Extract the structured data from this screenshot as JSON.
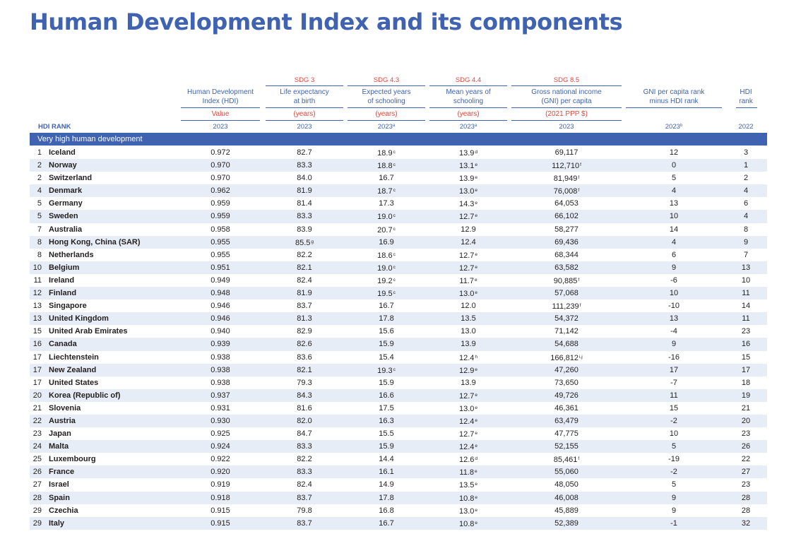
{
  "title": "Human Development Index and its components",
  "header": {
    "sdg": [
      "SDG 3",
      "SDG 4.3",
      "SDG 4.4",
      "SDG 8.5"
    ],
    "columns": [
      {
        "label_lines": [
          "Human Development",
          "Index (HDI)"
        ],
        "unit": "Value",
        "year": "2023",
        "year_note": ""
      },
      {
        "label_lines": [
          "Life expectancy",
          "at birth"
        ],
        "unit": "(years)",
        "year": "2023",
        "year_note": ""
      },
      {
        "label_lines": [
          "Expected years",
          "of schooling"
        ],
        "unit": "(years)",
        "year": "2023",
        "year_note": "a"
      },
      {
        "label_lines": [
          "Mean years of",
          "schooling"
        ],
        "unit": "(years)",
        "year": "2023",
        "year_note": "a"
      },
      {
        "label_lines": [
          "Gross national income",
          "(GNI) per capita"
        ],
        "unit": "(2021 PPP $)",
        "year": "2023",
        "year_note": ""
      },
      {
        "label_lines": [
          "GNI per capita rank",
          "minus HDI rank"
        ],
        "unit": "",
        "year": "2023",
        "year_note": "b"
      },
      {
        "label_lines": [
          "HDI",
          "rank"
        ],
        "unit": "",
        "year": "2022",
        "year_note": ""
      }
    ],
    "rank_label": "HDI RANK"
  },
  "group_label": "Very high human development",
  "table": {
    "rows": [
      {
        "rank": "1",
        "country": "Iceland",
        "hdi": "0.972",
        "le": "82.7",
        "le_note": "",
        "eys": "18.9",
        "eys_note": "c",
        "mys": "13.9",
        "mys_note": "d",
        "gni": "69,117",
        "gni_note": "",
        "diff": "12",
        "rank2022": "3"
      },
      {
        "rank": "2",
        "country": "Norway",
        "hdi": "0.970",
        "le": "83.3",
        "le_note": "",
        "eys": "18.8",
        "eys_note": "c",
        "mys": "13.1",
        "mys_note": "e",
        "gni": "112,710",
        "gni_note": "f",
        "diff": "0",
        "rank2022": "1"
      },
      {
        "rank": "2",
        "country": "Switzerland",
        "hdi": "0.970",
        "le": "84.0",
        "le_note": "",
        "eys": "16.7",
        "eys_note": "",
        "mys": "13.9",
        "mys_note": "e",
        "gni": "81,949",
        "gni_note": "f",
        "diff": "5",
        "rank2022": "2"
      },
      {
        "rank": "4",
        "country": "Denmark",
        "hdi": "0.962",
        "le": "81.9",
        "le_note": "",
        "eys": "18.7",
        "eys_note": "c",
        "mys": "13.0",
        "mys_note": "e",
        "gni": "76,008",
        "gni_note": "f",
        "diff": "4",
        "rank2022": "4"
      },
      {
        "rank": "5",
        "country": "Germany",
        "hdi": "0.959",
        "le": "81.4",
        "le_note": "",
        "eys": "17.3",
        "eys_note": "",
        "mys": "14.3",
        "mys_note": "e",
        "gni": "64,053",
        "gni_note": "",
        "diff": "13",
        "rank2022": "6"
      },
      {
        "rank": "5",
        "country": "Sweden",
        "hdi": "0.959",
        "le": "83.3",
        "le_note": "",
        "eys": "19.0",
        "eys_note": "c",
        "mys": "12.7",
        "mys_note": "e",
        "gni": "66,102",
        "gni_note": "",
        "diff": "10",
        "rank2022": "4"
      },
      {
        "rank": "7",
        "country": "Australia",
        "hdi": "0.958",
        "le": "83.9",
        "le_note": "",
        "eys": "20.7",
        "eys_note": "c",
        "mys": "12.9",
        "mys_note": "",
        "gni": "58,277",
        "gni_note": "",
        "diff": "14",
        "rank2022": "8"
      },
      {
        "rank": "8",
        "country": "Hong Kong, China (SAR)",
        "hdi": "0.955",
        "le": "85.5",
        "le_note": "g",
        "eys": "16.9",
        "eys_note": "",
        "mys": "12.4",
        "mys_note": "",
        "gni": "69,436",
        "gni_note": "",
        "diff": "4",
        "rank2022": "9"
      },
      {
        "rank": "8",
        "country": "Netherlands",
        "hdi": "0.955",
        "le": "82.2",
        "le_note": "",
        "eys": "18.6",
        "eys_note": "c",
        "mys": "12.7",
        "mys_note": "e",
        "gni": "68,344",
        "gni_note": "",
        "diff": "6",
        "rank2022": "7"
      },
      {
        "rank": "10",
        "country": "Belgium",
        "hdi": "0.951",
        "le": "82.1",
        "le_note": "",
        "eys": "19.0",
        "eys_note": "c",
        "mys": "12.7",
        "mys_note": "e",
        "gni": "63,582",
        "gni_note": "",
        "diff": "9",
        "rank2022": "13"
      },
      {
        "rank": "11",
        "country": "Ireland",
        "hdi": "0.949",
        "le": "82.4",
        "le_note": "",
        "eys": "19.2",
        "eys_note": "c",
        "mys": "11.7",
        "mys_note": "e",
        "gni": "90,885",
        "gni_note": "f",
        "diff": "-6",
        "rank2022": "10"
      },
      {
        "rank": "12",
        "country": "Finland",
        "hdi": "0.948",
        "le": "81.9",
        "le_note": "",
        "eys": "19.5",
        "eys_note": "c",
        "mys": "13.0",
        "mys_note": "e",
        "gni": "57,068",
        "gni_note": "",
        "diff": "10",
        "rank2022": "11"
      },
      {
        "rank": "13",
        "country": "Singapore",
        "hdi": "0.946",
        "le": "83.7",
        "le_note": "",
        "eys": "16.7",
        "eys_note": "",
        "mys": "12.0",
        "mys_note": "",
        "gni": "111,239",
        "gni_note": "f",
        "diff": "-10",
        "rank2022": "14"
      },
      {
        "rank": "13",
        "country": "United Kingdom",
        "hdi": "0.946",
        "le": "81.3",
        "le_note": "",
        "eys": "17.8",
        "eys_note": "",
        "mys": "13.5",
        "mys_note": "",
        "gni": "54,372",
        "gni_note": "",
        "diff": "13",
        "rank2022": "11"
      },
      {
        "rank": "15",
        "country": "United Arab Emirates",
        "hdi": "0.940",
        "le": "82.9",
        "le_note": "",
        "eys": "15.6",
        "eys_note": "",
        "mys": "13.0",
        "mys_note": "",
        "gni": "71,142",
        "gni_note": "",
        "diff": "-4",
        "rank2022": "23"
      },
      {
        "rank": "16",
        "country": "Canada",
        "hdi": "0.939",
        "le": "82.6",
        "le_note": "",
        "eys": "15.9",
        "eys_note": "",
        "mys": "13.9",
        "mys_note": "",
        "gni": "54,688",
        "gni_note": "",
        "diff": "9",
        "rank2022": "16"
      },
      {
        "rank": "17",
        "country": "Liechtenstein",
        "hdi": "0.938",
        "le": "83.6",
        "le_note": "",
        "eys": "15.4",
        "eys_note": "",
        "mys": "12.4",
        "mys_note": "h",
        "gni": "166,812",
        "gni_note": "i,j",
        "diff": "-16",
        "rank2022": "15"
      },
      {
        "rank": "17",
        "country": "New Zealand",
        "hdi": "0.938",
        "le": "82.1",
        "le_note": "",
        "eys": "19.3",
        "eys_note": "c",
        "mys": "12.9",
        "mys_note": "e",
        "gni": "47,260",
        "gni_note": "",
        "diff": "17",
        "rank2022": "17"
      },
      {
        "rank": "17",
        "country": "United States",
        "hdi": "0.938",
        "le": "79.3",
        "le_note": "",
        "eys": "15.9",
        "eys_note": "",
        "mys": "13.9",
        "mys_note": "",
        "gni": "73,650",
        "gni_note": "",
        "diff": "-7",
        "rank2022": "18"
      },
      {
        "rank": "20",
        "country": "Korea (Republic of)",
        "hdi": "0.937",
        "le": "84.3",
        "le_note": "",
        "eys": "16.6",
        "eys_note": "",
        "mys": "12.7",
        "mys_note": "e",
        "gni": "49,726",
        "gni_note": "",
        "diff": "11",
        "rank2022": "19"
      },
      {
        "rank": "21",
        "country": "Slovenia",
        "hdi": "0.931",
        "le": "81.6",
        "le_note": "",
        "eys": "17.5",
        "eys_note": "",
        "mys": "13.0",
        "mys_note": "e",
        "gni": "46,361",
        "gni_note": "",
        "diff": "15",
        "rank2022": "21"
      },
      {
        "rank": "22",
        "country": "Austria",
        "hdi": "0.930",
        "le": "82.0",
        "le_note": "",
        "eys": "16.3",
        "eys_note": "",
        "mys": "12.4",
        "mys_note": "e",
        "gni": "63,479",
        "gni_note": "",
        "diff": "-2",
        "rank2022": "20"
      },
      {
        "rank": "23",
        "country": "Japan",
        "hdi": "0.925",
        "le": "84.7",
        "le_note": "",
        "eys": "15.5",
        "eys_note": "",
        "mys": "12.7",
        "mys_note": "e",
        "gni": "47,775",
        "gni_note": "",
        "diff": "10",
        "rank2022": "23"
      },
      {
        "rank": "24",
        "country": "Malta",
        "hdi": "0.924",
        "le": "83.3",
        "le_note": "",
        "eys": "15.9",
        "eys_note": "",
        "mys": "12.4",
        "mys_note": "e",
        "gni": "52,155",
        "gni_note": "",
        "diff": "5",
        "rank2022": "26"
      },
      {
        "rank": "25",
        "country": "Luxembourg",
        "hdi": "0.922",
        "le": "82.2",
        "le_note": "",
        "eys": "14.4",
        "eys_note": "",
        "mys": "12.6",
        "mys_note": "d",
        "gni": "85,461",
        "gni_note": "f",
        "diff": "-19",
        "rank2022": "22"
      },
      {
        "rank": "26",
        "country": "France",
        "hdi": "0.920",
        "le": "83.3",
        "le_note": "",
        "eys": "16.1",
        "eys_note": "",
        "mys": "11.8",
        "mys_note": "e",
        "gni": "55,060",
        "gni_note": "",
        "diff": "-2",
        "rank2022": "27"
      },
      {
        "rank": "27",
        "country": "Israel",
        "hdi": "0.919",
        "le": "82.4",
        "le_note": "",
        "eys": "14.9",
        "eys_note": "",
        "mys": "13.5",
        "mys_note": "e",
        "gni": "48,050",
        "gni_note": "",
        "diff": "5",
        "rank2022": "23"
      },
      {
        "rank": "28",
        "country": "Spain",
        "hdi": "0.918",
        "le": "83.7",
        "le_note": "",
        "eys": "17.8",
        "eys_note": "",
        "mys": "10.8",
        "mys_note": "e",
        "gni": "46,008",
        "gni_note": "",
        "diff": "9",
        "rank2022": "28"
      },
      {
        "rank": "29",
        "country": "Czechia",
        "hdi": "0.915",
        "le": "79.8",
        "le_note": "",
        "eys": "16.8",
        "eys_note": "",
        "mys": "13.0",
        "mys_note": "e",
        "gni": "45,889",
        "gni_note": "",
        "diff": "9",
        "rank2022": "28"
      },
      {
        "rank": "29",
        "country": "Italy",
        "hdi": "0.915",
        "le": "83.7",
        "le_note": "",
        "eys": "16.7",
        "eys_note": "",
        "mys": "10.8",
        "mys_note": "e",
        "gni": "52,389",
        "gni_note": "",
        "diff": "-1",
        "rank2022": "32"
      }
    ]
  }
}
